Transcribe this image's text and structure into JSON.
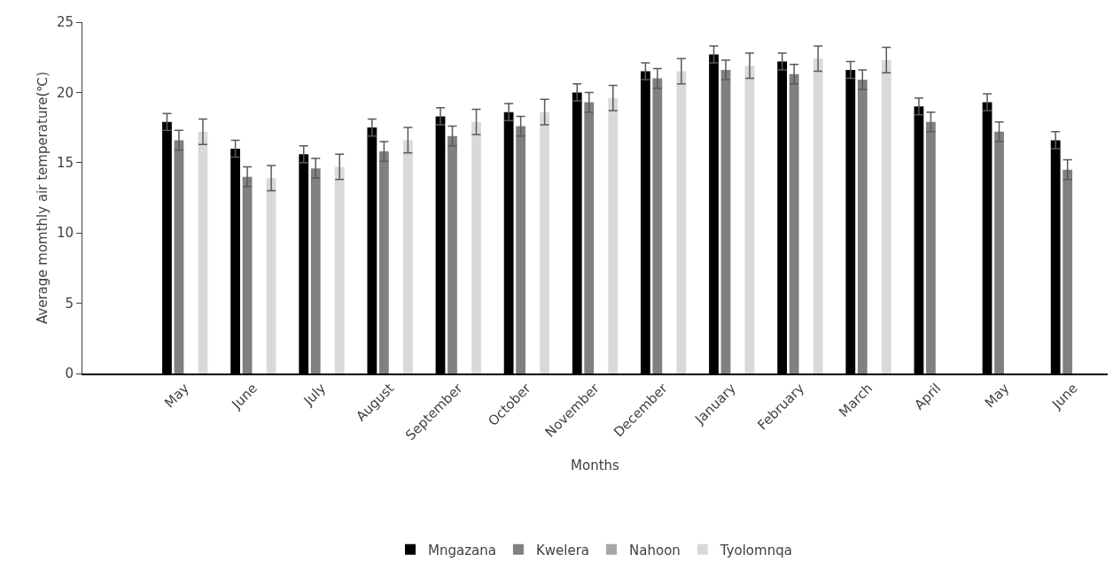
{
  "chart_data": {
    "type": "bar",
    "xlabel": "Months",
    "ylabel": "Average momthly air temperature(℃)",
    "categories": [
      null,
      "May",
      "June",
      "July",
      "August",
      "September",
      "October",
      "November",
      "December",
      "January",
      "February",
      "March",
      "April",
      "May",
      "June"
    ],
    "series": [
      {
        "name": "Mngazana",
        "color": "#000000",
        "values": [
          null,
          17.9,
          16.0,
          15.6,
          17.5,
          18.3,
          18.6,
          20.0,
          21.5,
          22.7,
          22.2,
          21.6,
          19.0,
          19.3,
          16.6
        ],
        "errors": [
          null,
          0.6,
          0.6,
          0.6,
          0.6,
          0.6,
          0.6,
          0.6,
          0.6,
          0.6,
          0.6,
          0.6,
          0.6,
          0.6,
          0.6
        ]
      },
      {
        "name": "Kwelera",
        "color": "#808080",
        "values": [
          null,
          16.6,
          14.0,
          14.6,
          15.8,
          16.9,
          17.6,
          19.3,
          21.0,
          21.6,
          21.3,
          20.9,
          17.9,
          17.2,
          14.5
        ],
        "errors": [
          null,
          0.7,
          0.7,
          0.7,
          0.7,
          0.7,
          0.7,
          0.7,
          0.7,
          0.7,
          0.7,
          0.7,
          0.7,
          0.7,
          0.7
        ]
      },
      {
        "name": "Nahoon",
        "color": "#a6a6a6",
        "values": [
          null,
          null,
          null,
          null,
          null,
          null,
          null,
          null,
          null,
          null,
          null,
          null,
          null,
          null,
          null
        ]
      },
      {
        "name": "Tyolomnqa",
        "color": "#d9d9d9",
        "values": [
          null,
          17.2,
          13.9,
          14.7,
          16.6,
          17.9,
          18.6,
          19.6,
          21.5,
          21.9,
          22.4,
          22.3,
          null,
          null,
          null
        ],
        "errors": [
          null,
          0.9,
          0.9,
          0.9,
          0.9,
          0.9,
          0.9,
          0.9,
          0.9,
          0.9,
          0.9,
          0.9,
          null,
          null,
          null
        ]
      }
    ],
    "ylim": [
      0,
      25
    ],
    "yticks": [
      0,
      5,
      10,
      15,
      20,
      25
    ],
    "grid": false,
    "legend": "bottom"
  }
}
